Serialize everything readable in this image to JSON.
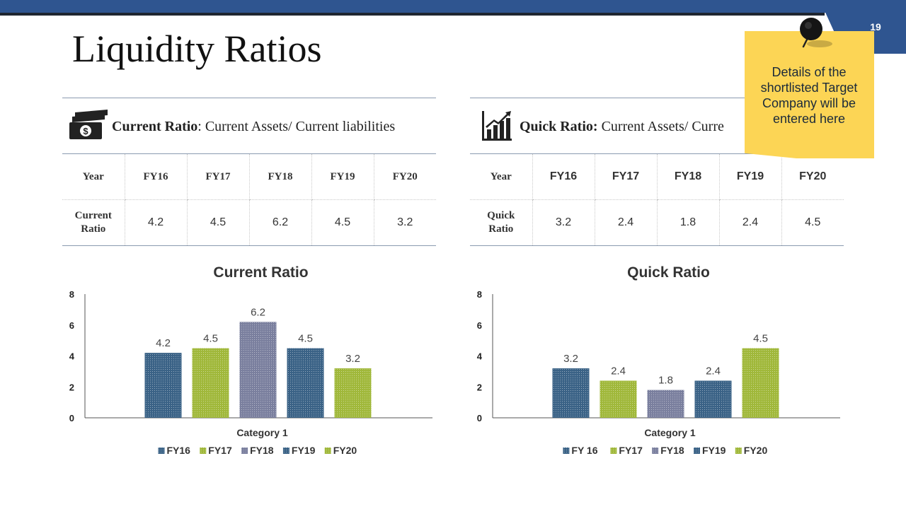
{
  "slide": {
    "title": "Liquidity Ratios",
    "page_number": "19"
  },
  "current_ratio": {
    "header_bold": "Current Ratio",
    "header_rest": ": Current Assets/ Current liabilities",
    "table": {
      "year_label": "Year",
      "years": [
        "FY16",
        "FY17",
        "FY18",
        "FY19",
        "FY20"
      ],
      "row_label_1": "Current",
      "row_label_2": "Ratio",
      "values": [
        "4.2",
        "4.5",
        "6.2",
        "4.5",
        "3.2"
      ]
    }
  },
  "quick_ratio": {
    "header_bold": "Quick Ratio:",
    "header_rest": " Current Assets/ Curre",
    "table": {
      "year_label": "Year",
      "years": [
        "FY16",
        "FY17",
        "FY18",
        "FY19",
        "FY20"
      ],
      "row_label_1": "Quick",
      "row_label_2": "Ratio",
      "values": [
        "3.2",
        "2.4",
        "1.8",
        "2.4",
        "4.5"
      ]
    }
  },
  "sticky_note": {
    "text": "Details of the shortlisted Target Company will be entered here"
  },
  "colors": {
    "navy": "#2f5590",
    "series_blue": "#3a6286",
    "series_green": "#a0b83a",
    "series_gray": "#7a7f9e",
    "sticky": "#fcd555"
  },
  "chart_data": [
    {
      "type": "bar",
      "title": "Current Ratio",
      "categories": [
        "Category 1"
      ],
      "series": [
        {
          "name": "FY16",
          "values": [
            4.2
          ]
        },
        {
          "name": "FY17",
          "values": [
            4.5
          ]
        },
        {
          "name": "FY18",
          "values": [
            6.2
          ]
        },
        {
          "name": "FY19",
          "values": [
            4.5
          ]
        },
        {
          "name": "FY20",
          "values": [
            3.2
          ]
        }
      ],
      "data_labels": [
        "4.2",
        "4.5",
        "6.2",
        "4.5",
        "3.2"
      ],
      "xlabel": "Category 1",
      "ylabel": "",
      "ylim": [
        0,
        8
      ],
      "yticks": [
        0,
        2,
        4,
        6,
        8
      ],
      "grid": false,
      "legend": "bottom"
    },
    {
      "type": "bar",
      "title": "Quick Ratio",
      "categories": [
        "Category 1"
      ],
      "series": [
        {
          "name": "FY 16",
          "values": [
            3.2
          ]
        },
        {
          "name": "FY17",
          "values": [
            2.4
          ]
        },
        {
          "name": "FY18",
          "values": [
            1.8
          ]
        },
        {
          "name": "FY19",
          "values": [
            2.4
          ]
        },
        {
          "name": "FY20",
          "values": [
            4.5
          ]
        }
      ],
      "data_labels": [
        "3.2",
        "2.4",
        "1.8",
        "2.4",
        "4.5"
      ],
      "xlabel": "Category 1",
      "ylabel": "",
      "ylim": [
        0,
        8
      ],
      "yticks": [
        0,
        2,
        4,
        6,
        8
      ],
      "grid": false,
      "legend": "bottom"
    }
  ]
}
